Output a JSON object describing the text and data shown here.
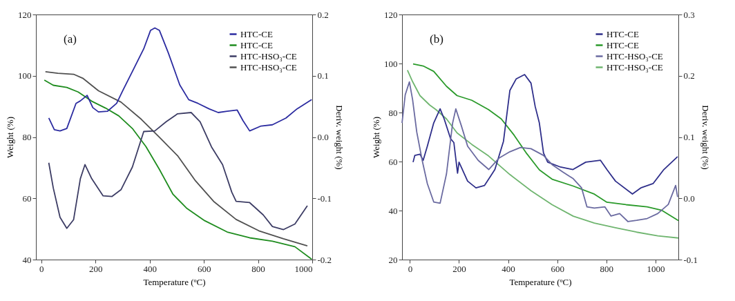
{
  "chart_data": [
    {
      "type": "line",
      "annotations": [
        "(a)"
      ],
      "xlabel": "Temperature (ºC)",
      "ylabel": "Weight (%)",
      "y2label": "Deriv. weight (%)",
      "xlim": [
        -20,
        1000
      ],
      "xticks": [
        0,
        200,
        400,
        600,
        800,
        1000
      ],
      "ylim": [
        40,
        120
      ],
      "yticks": [
        40,
        60,
        80,
        100,
        120
      ],
      "y2lim": [
        -0.2,
        0.2
      ],
      "y2ticks": [
        -0.2,
        -0.1,
        {
          "value": 0,
          "label": "0.0"
        },
        0.1,
        0.2
      ],
      "grid": false,
      "legend": "top right",
      "marker": "none",
      "line_style": "solid",
      "series": [
        {
          "name": "HTC-CE",
          "color": "#2b2ba0",
          "axis": "y2",
          "x": [
            27.5,
            48,
            69,
            94,
            128,
            144,
            169,
            190,
            211,
            244,
            278,
            302,
            336,
            378,
            403,
            419,
            436,
            469,
            511,
            544,
            578,
            619,
            653,
            686,
            723,
            744,
            769,
            811,
            853,
            903,
            944,
            998
          ],
          "values": [
            0.031,
            0.012,
            0.01,
            0.014,
            0.055,
            0.059,
            0.068,
            0.048,
            0.041,
            0.042,
            0.055,
            0.077,
            0.107,
            0.144,
            0.174,
            0.178,
            0.174,
            0.137,
            0.085,
            0.061,
            0.055,
            0.046,
            0.04,
            0.042,
            0.044,
            0.027,
            0.01,
            0.018,
            0.02,
            0.031,
            0.046,
            0.061
          ]
        },
        {
          "name": "HTC-CE",
          "color": "#1e8c1e",
          "x": [
            11,
            44,
            94,
            136,
            186,
            236,
            286,
            336,
            386,
            436,
            486,
            536,
            603,
            686,
            769,
            853,
            936,
            998
          ],
          "values": [
            98.6,
            96.9,
            96.2,
            94.7,
            91.7,
            89.5,
            86.9,
            82.8,
            76.9,
            69.4,
            61.3,
            56.8,
            52.7,
            49.0,
            47.1,
            46.0,
            44.2,
            40.1
          ]
        },
        {
          "name": "HTC-HSO₃-CE",
          "color": "#3c3c64",
          "axis": "y2",
          "x": [
            27.5,
            44,
            69,
            94,
            119,
            144,
            161,
            186,
            228,
            261,
            294,
            336,
            378,
            419,
            461,
            503,
            553,
            586,
            628,
            669,
            703,
            719,
            769,
            819,
            853,
            894,
            936,
            982
          ],
          "values": [
            -0.042,
            -0.083,
            -0.131,
            -0.149,
            -0.135,
            -0.068,
            -0.045,
            -0.068,
            -0.096,
            -0.097,
            -0.086,
            -0.049,
            0.009,
            0.01,
            0.025,
            0.038,
            0.04,
            0.025,
            -0.016,
            -0.045,
            -0.09,
            -0.105,
            -0.107,
            -0.127,
            -0.146,
            -0.151,
            -0.142,
            -0.112
          ]
        },
        {
          "name": "HTC-HSO₃-CE",
          "color": "#505050",
          "x": [
            15,
            61,
            119,
            153,
            211,
            294,
            369,
            436,
            503,
            569,
            636,
            719,
            803,
            894,
            982
          ],
          "values": [
            101.3,
            100.8,
            100.5,
            99.2,
            95.1,
            91.4,
            85.8,
            79.9,
            73.9,
            65.7,
            59.0,
            53.1,
            49.4,
            46.8,
            44.5
          ]
        }
      ]
    },
    {
      "type": "line",
      "annotations": [
        "(b)"
      ],
      "xlabel": "Temperature (ºC)",
      "ylabel": "Weight (%)",
      "y2label": "Deriv. weight (%)",
      "xlim": [
        -32,
        1093
      ],
      "xticks": [
        0,
        200,
        400,
        600,
        800,
        1000
      ],
      "ylim": [
        20,
        120
      ],
      "yticks": [
        20,
        40,
        60,
        80,
        100,
        120
      ],
      "y2lim": [
        -0.1,
        0.3
      ],
      "y2ticks": [
        -0.1,
        {
          "value": 0,
          "label": "0.0"
        },
        0.1,
        0.2,
        0.3
      ],
      "grid": false,
      "legend": "top right",
      "marker": "none",
      "line_style": "solid",
      "series": [
        {
          "name": "HTC-CE",
          "color": "#2e2e8a",
          "axis": "y2",
          "x": [
            13,
            20,
            41,
            54,
            71,
            97,
            123,
            140,
            166,
            179,
            194,
            200,
            235,
            269,
            304,
            346,
            381,
            407,
            433,
            467,
            493,
            510,
            527,
            544,
            561,
            613,
            664,
            716,
            776,
            802,
            837,
            906,
            940,
            990,
            1034,
            1090
          ],
          "values": [
            0.059,
            0.07,
            0.072,
            0.062,
            0.085,
            0.123,
            0.146,
            0.129,
            0.097,
            0.091,
            0.041,
            0.059,
            0.028,
            0.017,
            0.021,
            0.047,
            0.093,
            0.176,
            0.195,
            0.202,
            0.188,
            0.15,
            0.123,
            0.074,
            0.059,
            0.051,
            0.047,
            0.059,
            0.062,
            0.047,
            0.028,
            0.007,
            0.017,
            0.024,
            0.047,
            0.068
          ]
        },
        {
          "name": "HTC-CE",
          "color": "#2a9a2a",
          "x": [
            13,
            54,
            97,
            149,
            192,
            252,
            320,
            372,
            424,
            476,
            527,
            579,
            665,
            751,
            802,
            880,
            966,
            1026,
            1093
          ],
          "values": [
            99.8,
            99.0,
            96.8,
            90.7,
            86.9,
            85.0,
            81.2,
            77.4,
            70.8,
            63.2,
            56.6,
            52.8,
            50.0,
            46.7,
            43.4,
            42.4,
            41.5,
            40.1,
            35.9
          ]
        },
        {
          "name": "HTC-HSO₃-CE",
          "color": "#6a6aa0",
          "axis": "y2",
          "x": [
            -32,
            -19,
            -2,
            11,
            28,
            50,
            71,
            97,
            123,
            149,
            174,
            187,
            209,
            235,
            278,
            321,
            364,
            407,
            450,
            493,
            544,
            579,
            622,
            665,
            699,
            721,
            751,
            794,
            819,
            854,
            888,
            923,
            966,
            1009,
            1052,
            1082,
            1090
          ],
          "values": [
            0.123,
            0.169,
            0.19,
            0.161,
            0.108,
            0.062,
            0.024,
            -0.006,
            -0.008,
            0.04,
            0.123,
            0.146,
            0.119,
            0.085,
            0.062,
            0.047,
            0.066,
            0.076,
            0.083,
            0.081,
            0.07,
            0.055,
            0.043,
            0.032,
            0.017,
            -0.014,
            -0.016,
            -0.014,
            -0.029,
            -0.025,
            -0.038,
            -0.036,
            -0.033,
            -0.025,
            -0.01,
            0.021,
            0.002
          ]
        },
        {
          "name": "HTC-HSO₃-CE",
          "color": "#6fb56f",
          "x": [
            -10,
            11,
            41,
            80,
            106,
            149,
            192,
            252,
            320,
            407,
            493,
            579,
            665,
            751,
            837,
            923,
            1009,
            1093
          ],
          "values": [
            97.3,
            92.6,
            86.9,
            83.1,
            81.2,
            77.4,
            71.7,
            67.0,
            62.3,
            54.7,
            48.1,
            42.4,
            37.7,
            34.9,
            33.0,
            31.2,
            29.7,
            28.8
          ]
        }
      ]
    }
  ]
}
